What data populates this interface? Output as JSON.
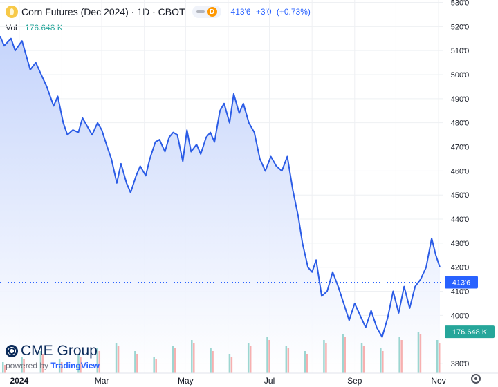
{
  "header": {
    "title": "Corn Futures (Dec 2024) · 1D · CBOT",
    "d_badge": "D",
    "last_price": "413'6",
    "change": "+3'0",
    "change_pct": "(+0.73%)"
  },
  "volume": {
    "label": "Vol",
    "value": "176.648 K"
  },
  "watermark": {
    "brand": "CME Group",
    "powered_by": "powered by",
    "platform": "TradingView"
  },
  "colors": {
    "line": "#2b5ce6",
    "area_top": "#c5d4fb",
    "area_bottom": "#ffffff",
    "volume_up": "#26a69a",
    "volume_down": "#ef5350",
    "last_price_label": "#2962ff",
    "volume_label": "#26a69a",
    "grid": "#eef0f3",
    "axis_text": "#131722"
  },
  "icons": [
    "symbol-icon",
    "settings-icon"
  ],
  "chart_data": {
    "type": "area",
    "title": "Corn Futures (Dec 2024) · 1D · CBOT",
    "x_axis_labels": [
      "2024",
      "Mar",
      "May",
      "Jul",
      "Sep",
      "Nov"
    ],
    "y_axis_labels": [
      "530'0",
      "520'0",
      "510'0",
      "500'0",
      "490'0",
      "480'0",
      "470'0",
      "460'0",
      "450'0",
      "440'0",
      "430'0",
      "420'0",
      "410'0",
      "400'0",
      "380'0"
    ],
    "ylim": [
      376,
      531
    ],
    "x_range": [
      "2023-12-18",
      "2024-11-04"
    ],
    "grid": true,
    "last_price_label": "413'6",
    "last_price_value": 413.75,
    "volume_label": "176.648 K",
    "series": [
      {
        "type": "line",
        "points": [
          [
            "2023-12-18",
            516
          ],
          [
            "2023-12-21",
            512
          ],
          [
            "2023-12-26",
            515
          ],
          [
            "2023-12-29",
            510
          ],
          [
            "2024-01-03",
            514
          ],
          [
            "2024-01-06",
            508
          ],
          [
            "2024-01-09",
            502
          ],
          [
            "2024-01-13",
            505
          ],
          [
            "2024-01-17",
            500
          ],
          [
            "2024-01-21",
            495
          ],
          [
            "2024-01-26",
            487
          ],
          [
            "2024-01-29",
            491
          ],
          [
            "2024-02-02",
            480
          ],
          [
            "2024-02-05",
            475
          ],
          [
            "2024-02-09",
            477
          ],
          [
            "2024-02-13",
            476
          ],
          [
            "2024-02-16",
            482
          ],
          [
            "2024-02-20",
            478
          ],
          [
            "2024-02-23",
            475
          ],
          [
            "2024-02-27",
            480
          ],
          [
            "2024-03-01",
            477
          ],
          [
            "2024-03-05",
            470
          ],
          [
            "2024-03-08",
            465
          ],
          [
            "2024-03-12",
            455
          ],
          [
            "2024-03-15",
            463
          ],
          [
            "2024-03-19",
            455
          ],
          [
            "2024-03-22",
            451
          ],
          [
            "2024-03-26",
            458
          ],
          [
            "2024-03-29",
            462
          ],
          [
            "2024-04-02",
            458
          ],
          [
            "2024-04-05",
            465
          ],
          [
            "2024-04-09",
            472
          ],
          [
            "2024-04-12",
            473
          ],
          [
            "2024-04-16",
            468
          ],
          [
            "2024-04-19",
            474
          ],
          [
            "2024-04-22",
            476
          ],
          [
            "2024-04-25",
            475
          ],
          [
            "2024-04-29",
            464
          ],
          [
            "2024-05-02",
            477
          ],
          [
            "2024-05-05",
            468
          ],
          [
            "2024-05-09",
            471
          ],
          [
            "2024-05-12",
            467
          ],
          [
            "2024-05-16",
            474
          ],
          [
            "2024-05-19",
            476
          ],
          [
            "2024-05-22",
            472
          ],
          [
            "2024-05-26",
            485
          ],
          [
            "2024-05-29",
            488
          ],
          [
            "2024-06-02",
            480
          ],
          [
            "2024-06-05",
            492
          ],
          [
            "2024-06-09",
            484
          ],
          [
            "2024-06-12",
            488
          ],
          [
            "2024-06-16",
            480
          ],
          [
            "2024-06-20",
            476
          ],
          [
            "2024-06-24",
            465
          ],
          [
            "2024-06-28",
            460
          ],
          [
            "2024-07-02",
            466
          ],
          [
            "2024-07-06",
            462
          ],
          [
            "2024-07-10",
            460
          ],
          [
            "2024-07-14",
            466
          ],
          [
            "2024-07-18",
            452
          ],
          [
            "2024-07-22",
            441
          ],
          [
            "2024-07-25",
            430
          ],
          [
            "2024-07-29",
            420
          ],
          [
            "2024-08-01",
            418
          ],
          [
            "2024-08-04",
            423
          ],
          [
            "2024-08-08",
            408
          ],
          [
            "2024-08-12",
            410
          ],
          [
            "2024-08-16",
            418
          ],
          [
            "2024-08-20",
            412
          ],
          [
            "2024-08-24",
            405
          ],
          [
            "2024-08-28",
            398
          ],
          [
            "2024-09-01",
            405
          ],
          [
            "2024-09-05",
            400
          ],
          [
            "2024-09-09",
            395
          ],
          [
            "2024-09-13",
            402
          ],
          [
            "2024-09-17",
            395
          ],
          [
            "2024-09-21",
            391
          ],
          [
            "2024-09-25",
            399
          ],
          [
            "2024-09-29",
            410
          ],
          [
            "2024-10-03",
            401
          ],
          [
            "2024-10-07",
            412
          ],
          [
            "2024-10-11",
            403
          ],
          [
            "2024-10-15",
            412
          ],
          [
            "2024-10-19",
            415
          ],
          [
            "2024-10-23",
            420
          ],
          [
            "2024-10-27",
            432
          ],
          [
            "2024-10-30",
            425
          ],
          [
            "2024-11-02",
            420
          ]
        ]
      },
      {
        "type": "volume",
        "up_volume": [
          4,
          6,
          8,
          5,
          7,
          9,
          11,
          8,
          6,
          10,
          12,
          9,
          7,
          11,
          13,
          10,
          8,
          12,
          14,
          11,
          9,
          13,
          15,
          12
        ],
        "down_volume": [
          3,
          5,
          7,
          4,
          6,
          8,
          10,
          7,
          5,
          9,
          11,
          8,
          6,
          10,
          12,
          9,
          7,
          11,
          13,
          10,
          8,
          12,
          14,
          11
        ]
      }
    ]
  }
}
